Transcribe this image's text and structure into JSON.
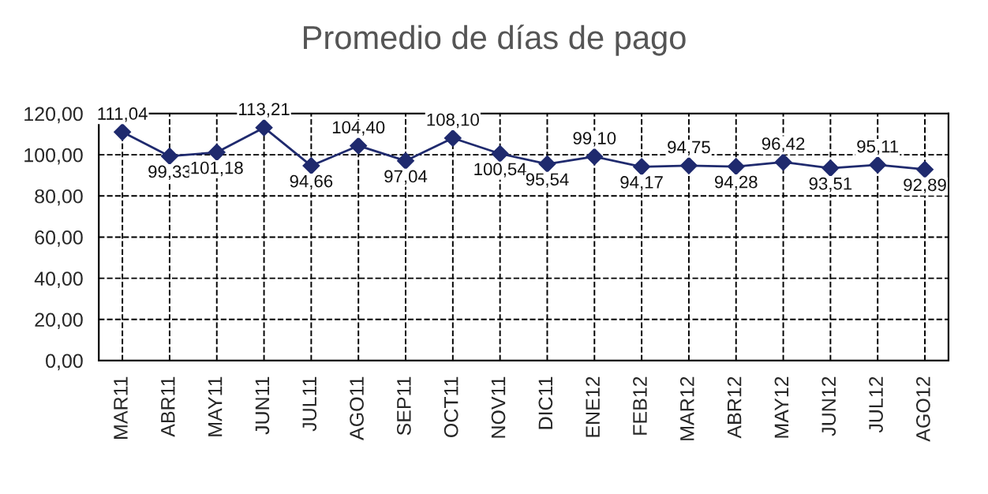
{
  "chart_data": {
    "type": "line",
    "title": "Promedio de días de pago",
    "categories": [
      "MAR11",
      "ABR11",
      "MAY11",
      "JUN11",
      "JUL11",
      "AGO11",
      "SEP11",
      "OCT11",
      "NOV11",
      "DIC11",
      "ENE12",
      "FEB12",
      "MAR12",
      "ABR12",
      "MAY12",
      "JUN12",
      "JUL12",
      "AGO12"
    ],
    "series": [
      {
        "color": "#1f2a6e",
        "values": [
          111.04,
          99.33,
          101.18,
          113.21,
          94.66,
          104.4,
          97.04,
          108.1,
          100.54,
          95.54,
          99.1,
          94.17,
          94.75,
          94.28,
          96.42,
          93.51,
          95.11,
          92.89
        ],
        "value_labels": [
          "111,04",
          "99,33",
          "101,18",
          "113,21",
          "94,66",
          "104,40",
          "97,04",
          "108,10",
          "100,54",
          "95,54",
          "99,10",
          "94,17",
          "94,75",
          "94,28",
          "96,42",
          "93,51",
          "95,11",
          "92,89"
        ]
      }
    ],
    "ylim": [
      0,
      120
    ],
    "yticks": [
      {
        "value": 0,
        "label": "0,00"
      },
      {
        "value": 20,
        "label": "20,00"
      },
      {
        "value": 40,
        "label": "40,00"
      },
      {
        "value": 60,
        "label": "60,00"
      },
      {
        "value": 80,
        "label": "80,00"
      },
      {
        "value": 100,
        "label": "100,00"
      },
      {
        "value": 120,
        "label": "120,00"
      }
    ],
    "grid": true,
    "marker": "diamond",
    "line_style": "solid"
  }
}
